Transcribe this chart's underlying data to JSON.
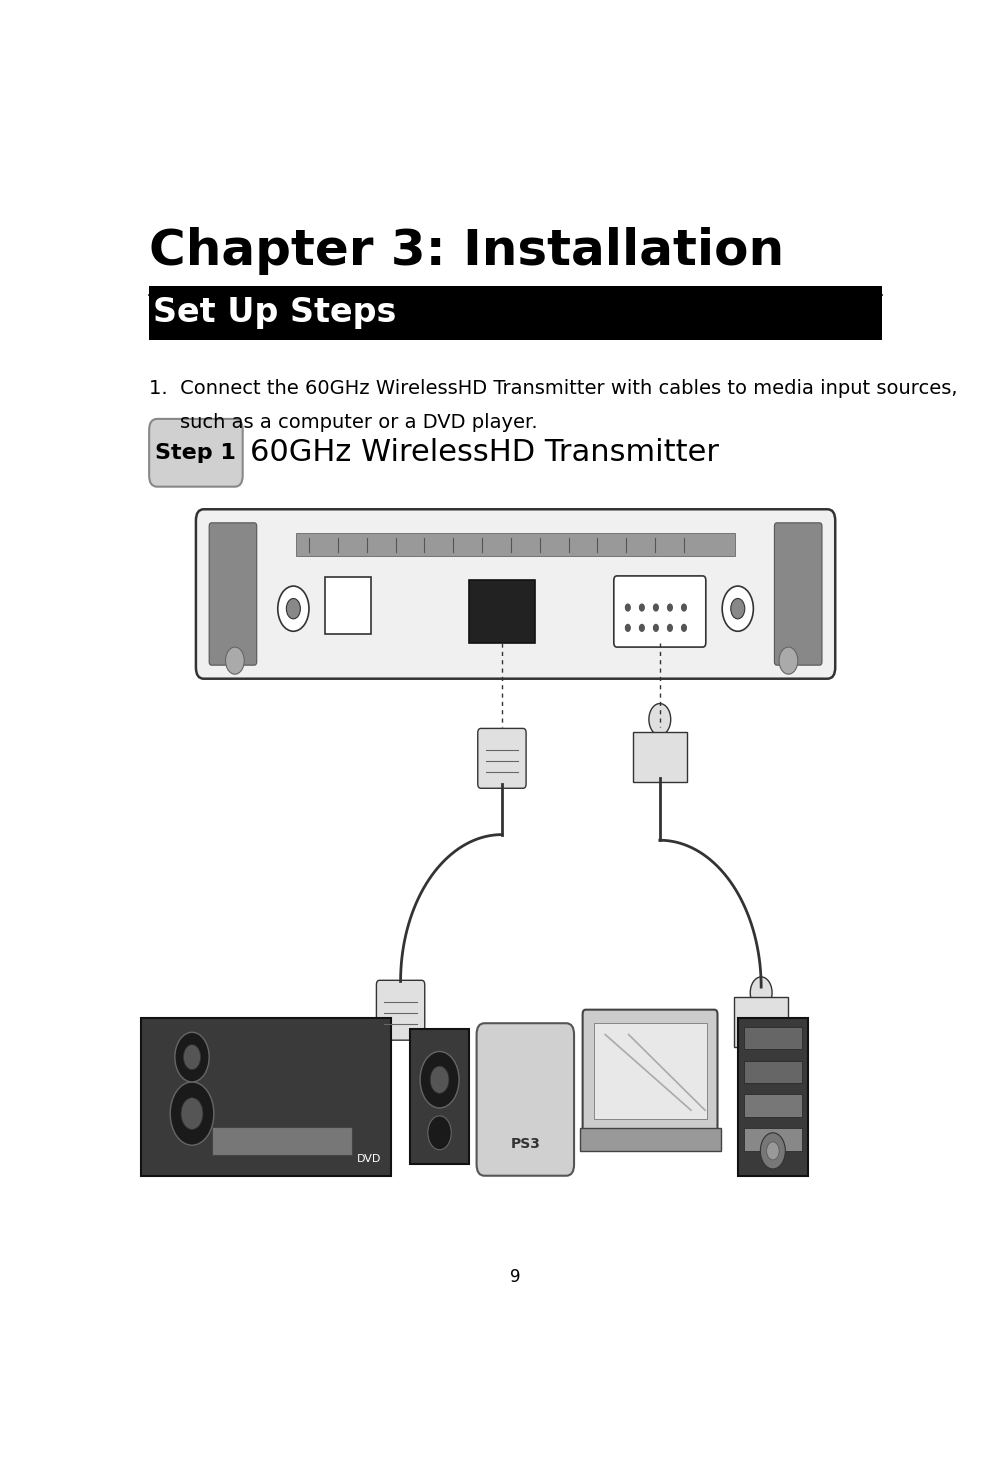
{
  "title": "Chapter 3: Installation",
  "section_title": "Set Up Steps",
  "section_bg": "#000000",
  "section_fg": "#ffffff",
  "body_text_line1": "1.  Connect the 60GHz WirelessHD Transmitter with cables to media input sources,",
  "body_text_line2": "such as a computer or a DVD player.",
  "step_label": "Step 1",
  "step_desc": "60GHz WirelessHD Transmitter",
  "page_number": "9",
  "bg_color": "#ffffff",
  "title_fontsize": 36,
  "section_fontsize": 24,
  "body_fontsize": 14,
  "step_label_fontsize": 16,
  "step_desc_fontsize": 22,
  "page_num_fontsize": 12
}
